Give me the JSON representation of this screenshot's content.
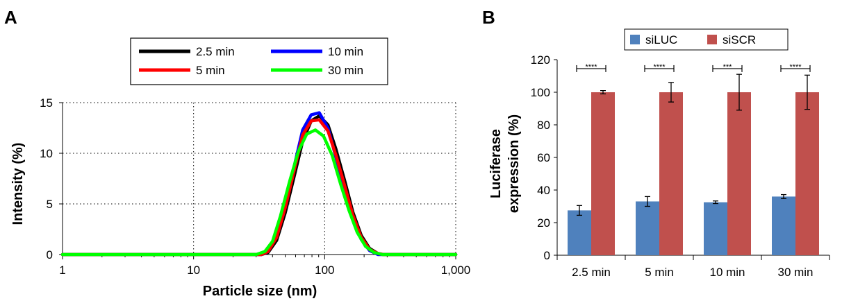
{
  "panel_a_label": "A",
  "panel_b_label": "B",
  "chart_data": [
    {
      "type": "line",
      "xlabel": "Particle size (nm)",
      "ylabel": "Intensity (%)",
      "x_scale": "log",
      "xlim": [
        1,
        1000
      ],
      "ylim": [
        0,
        15
      ],
      "x_ticks": [
        1,
        10,
        100,
        1000
      ],
      "x_tick_labels": [
        "1",
        "10",
        "100",
        "1,000"
      ],
      "y_ticks": [
        0,
        5,
        10,
        15
      ],
      "y_tick_labels": [
        "0",
        "5",
        "10",
        "15"
      ],
      "grid": "dotted",
      "legend_position": "top-center",
      "series": [
        {
          "name": "2.5 min",
          "color": "#000000",
          "x": [
            1,
            33,
            37,
            43,
            50,
            59,
            68,
            79,
            91,
            106,
            122,
            142,
            164,
            190,
            220,
            255,
            280,
            1000
          ],
          "y": [
            0,
            0,
            0.2,
            1.4,
            4.1,
            7.9,
            11.2,
            13.2,
            13.7,
            12.8,
            10.4,
            7.3,
            4.2,
            1.9,
            0.6,
            0.1,
            0,
            0
          ]
        },
        {
          "name": "10 min",
          "color": "#0000ff",
          "x": [
            1,
            33,
            37,
            43,
            50,
            59,
            68,
            79,
            91,
            106,
            122,
            142,
            164,
            190,
            220,
            255,
            280,
            1000
          ],
          "y": [
            0,
            0,
            0.3,
            1.8,
            4.8,
            8.9,
            12.3,
            13.8,
            14.0,
            12.5,
            9.6,
            6.5,
            3.6,
            1.5,
            0.4,
            0,
            0,
            0
          ]
        },
        {
          "name": "5 min",
          "color": "#ff0000",
          "x": [
            1,
            33,
            37,
            43,
            50,
            59,
            68,
            79,
            91,
            106,
            122,
            142,
            164,
            190,
            220,
            255,
            280,
            1000
          ],
          "y": [
            0,
            0,
            0.3,
            1.7,
            4.6,
            8.5,
            11.8,
            13.2,
            13.3,
            12.2,
            9.8,
            6.8,
            3.9,
            1.7,
            0.5,
            0.1,
            0,
            0
          ]
        },
        {
          "name": "30 min",
          "color": "#00ff00",
          "x": [
            1,
            30,
            35,
            40,
            46,
            54,
            63,
            73,
            85,
            98,
            114,
            132,
            153,
            177,
            205,
            238,
            275,
            1000
          ],
          "y": [
            0,
            0,
            0.3,
            1.3,
            3.8,
            7.2,
            10.2,
            11.9,
            12.3,
            11.7,
            9.8,
            7.0,
            4.4,
            2.2,
            0.8,
            0.2,
            0,
            0
          ]
        }
      ]
    },
    {
      "type": "bar",
      "categories": [
        "2.5 min",
        "5 min",
        "10 min",
        "30 min"
      ],
      "ylabel_lines": [
        "Luciferase",
        "expression (%)"
      ],
      "ylim": [
        0,
        120
      ],
      "y_ticks": [
        0,
        20,
        40,
        60,
        80,
        100,
        120
      ],
      "grid": false,
      "legend_position": "top",
      "series": [
        {
          "name": "siLUC",
          "color": "#4f81bd",
          "values": [
            27.5,
            33,
            32.5,
            36
          ],
          "errors": [
            3,
            3,
            0.8,
            1.2
          ]
        },
        {
          "name": "siSCR",
          "color": "#c0504d",
          "values": [
            100,
            100,
            100,
            100
          ],
          "errors": [
            1,
            6,
            11,
            10.5
          ]
        }
      ],
      "significance": [
        "****",
        "****",
        "***",
        "****"
      ]
    }
  ]
}
